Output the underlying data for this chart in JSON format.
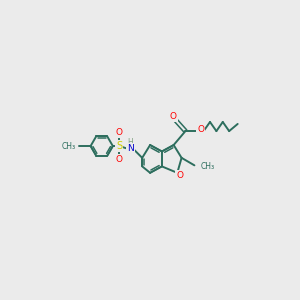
{
  "bg_color": "#ebebeb",
  "bond_color": "#2d6e5e",
  "atom_colors": {
    "O": "#ff0000",
    "N": "#0000cd",
    "S": "#cccc00",
    "C": "#2d6e5e",
    "H": "#7f9f7f"
  },
  "figsize": [
    3.0,
    3.0
  ],
  "dpi": 100
}
